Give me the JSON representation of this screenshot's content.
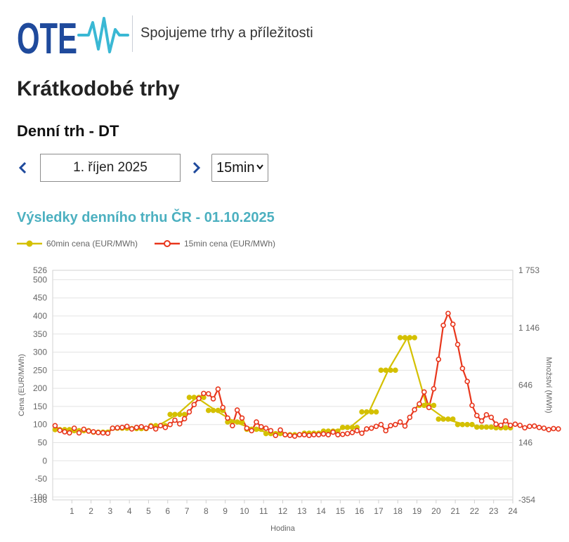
{
  "header": {
    "logo_text": "OTE",
    "tagline": "Spojujeme trhy a příležitosti"
  },
  "page": {
    "title": "Krátkodobé trhy",
    "subtitle": "Denní trh - DT"
  },
  "controls": {
    "date_value": "1. říjen 2025",
    "resolution_value": "15min"
  },
  "colors": {
    "brand_blue": "#1f4a9c",
    "brand_cyan": "#3ab8d4",
    "accent_title": "#4cb0c0",
    "series_60": "#d4c000",
    "series_15": "#e8361c"
  },
  "results": {
    "title": "Výsledky denního trhu ČR - 01.10.2025"
  },
  "chart_data": {
    "type": "line",
    "xlabel": "Hodina",
    "ylabel": "Cena (EUR/MWh)",
    "y2label": "Množství (MWh)",
    "x_ticks": [
      "1",
      "2",
      "3",
      "4",
      "5",
      "6",
      "7",
      "8",
      "9",
      "10",
      "11",
      "12",
      "13",
      "14",
      "15",
      "16",
      "17",
      "18",
      "19",
      "20",
      "21",
      "22",
      "23",
      "24"
    ],
    "y_ticks": [
      "-100",
      "-50",
      "0",
      "50",
      "100",
      "150",
      "200",
      "250",
      "300",
      "350",
      "400",
      "450",
      "500"
    ],
    "y_extra_ticks": [
      "526",
      "-108"
    ],
    "y2_ticks": [
      "1 753",
      "1 146",
      "646",
      "146",
      "-354"
    ],
    "ylim": [
      -108,
      526
    ],
    "xlim": [
      0,
      24
    ],
    "legend": [
      "60min cena (EUR/MWh)",
      "15min cena (EUR/MWh)"
    ],
    "series": [
      {
        "name": "60min cena (EUR/MWh)",
        "values": [
          86,
          83,
          79,
          90,
          89,
          97,
          128,
          175,
          139,
          107,
          87,
          75,
          72,
          76,
          82,
          92,
          135,
          250,
          340,
          153,
          115,
          100,
          93,
          91
        ]
      },
      {
        "name": "15min cena (EUR/MWh)",
        "values": [
          97,
          84,
          80,
          77,
          90,
          77,
          87,
          82,
          80,
          78,
          77,
          76,
          90,
          91,
          92,
          95,
          88,
          92,
          94,
          90,
          95,
          88,
          97,
          92,
          100,
          112,
          102,
          116,
          135,
          155,
          172,
          186,
          185,
          171,
          198,
          147,
          118,
          97,
          140,
          118,
          90,
          83,
          107,
          94,
          90,
          83,
          70,
          85,
          72,
          70,
          68,
          72,
          72,
          70,
          72,
          72,
          74,
          72,
          79,
          72,
          73,
          75,
          78,
          83,
          76,
          88,
          90,
          95,
          100,
          83,
          97,
          100,
          107,
          96,
          120,
          141,
          157,
          190,
          147,
          199,
          280,
          374,
          407,
          377,
          321,
          255,
          219,
          153,
          125,
          110,
          127,
          120,
          101,
          98,
          110,
          98,
          101,
          98,
          91,
          95,
          96,
          92,
          90,
          86,
          89,
          88
        ]
      }
    ]
  }
}
